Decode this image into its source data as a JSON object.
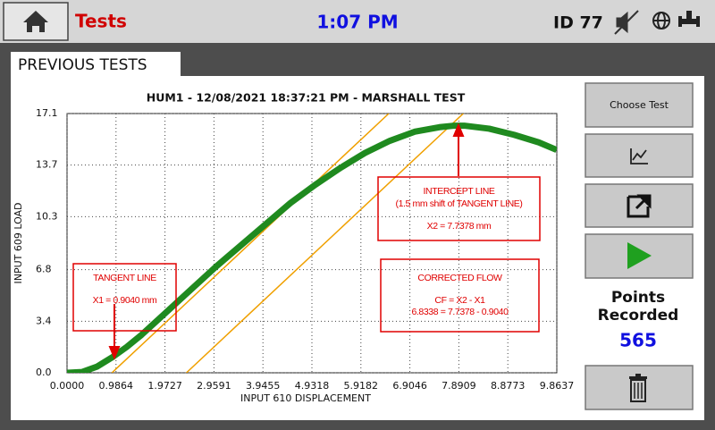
{
  "header": {
    "screen": "Tests",
    "time": "1:07 PM",
    "device_id": "ID 77"
  },
  "tab": "PREVIOUS TESTS",
  "chart_data": {
    "type": "line",
    "title": "HUM1 - 12/08/2021 18:37:21 PM - MARSHALL TEST",
    "x_label": "INPUT 610 DISPLACEMENT",
    "y_label": "INPUT 609 LOAD",
    "xlim": [
      0,
      9.8637
    ],
    "ylim": [
      0,
      17.1
    ],
    "xticks": [
      {
        "value": 0,
        "label": "0.0000"
      },
      0.9864,
      1.9727,
      2.9591,
      3.9455,
      4.9318,
      5.9182,
      6.9046,
      7.8909,
      8.8773,
      9.8637
    ],
    "yticks": [
      {
        "value": 0,
        "label": "0.0"
      },
      3.4,
      6.8,
      10.3,
      13.7,
      17.1
    ],
    "grid": true,
    "color": "#1f8a1f",
    "x": [
      0,
      0.3,
      0.6,
      0.9,
      1.2,
      1.5,
      2.0,
      2.5,
      3.0,
      3.5,
      4.0,
      4.5,
      5.0,
      5.5,
      6.0,
      6.5,
      7.0,
      7.5,
      7.8,
      8.0,
      8.5,
      9.0,
      9.5,
      9.86
    ],
    "values": [
      0,
      0.05,
      0.4,
      1.0,
      1.7,
      2.5,
      4.0,
      5.5,
      7.0,
      8.4,
      9.8,
      11.2,
      12.4,
      13.5,
      14.5,
      15.3,
      15.9,
      16.2,
      16.3,
      16.3,
      16.1,
      15.7,
      15.2,
      14.7
    ],
    "reference_color": "#f0a000",
    "reference_lines": [
      {
        "x": [
          0.904,
          6.48
        ],
        "values": [
          0,
          17.1
        ]
      },
      {
        "x": [
          2.404,
          7.98
        ],
        "values": [
          0,
          17.1
        ]
      }
    ],
    "annotations": [
      {
        "lines": [
          "TANGENT LINE",
          "X1 = 0.9040 mm"
        ]
      },
      {
        "lines": [
          "INTERCEPT LINE",
          "(1.5 mm shift of TANGENT LINE)",
          "X2 = 7.7378 mm"
        ]
      },
      {
        "lines": [
          "CORRECTED FLOW",
          "CF = X2 - X1",
          "6.8338 = 7.7378 - 0.9040"
        ]
      }
    ]
  },
  "sidebar": {
    "choose_test": "Choose Test",
    "points_label": [
      "Points",
      "Recorded"
    ],
    "points_recorded": "565"
  }
}
